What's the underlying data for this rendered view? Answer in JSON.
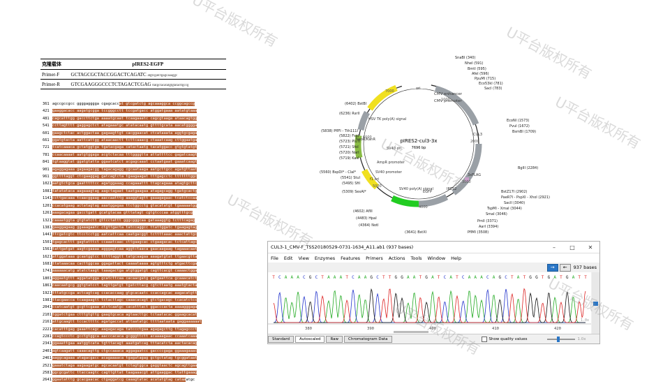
{
  "primer_table": {
    "header_col1": "克隆载体",
    "header_col2": "pIRES2-EGFP",
    "rows": [
      {
        "name": "Primer-F",
        "sequence": "GCTAGCGCTACCGGACTCAGATC",
        "extra": "atgtcgatctgagcaaaggc"
      },
      {
        "name": "Primer-R",
        "sequence": "GTCGAAGGGCCCTCTAGACTCGAG",
        "extra": "ttatgctacatatgtgtatacttgccg"
      }
    ]
  },
  "sequence": {
    "rows": [
      {
        "num": "361",
        "plain": "agccgccgcc ggggagggga cgagcacc",
        "hl": "at gtcgatctg agcaaaggca ccggcagccg"
      },
      {
        "num": "421",
        "plain": "",
        "hl": "gaaggacacc aagatgcgga tccgggcctt tccgatgacc atggatgaaa aatatgtaaa"
      },
      {
        "num": "481",
        "plain": "",
        "hl": "cagcatttgg gaccttctga aaaatgcaat tcaagaaatc cagcgtaaga ataacagtgg"
      },
      {
        "num": "541",
        "plain": "",
        "hl": "ccttagtttt gaggagctct atagaaatgc atatacaatg gttttgcata aacatgggga"
      },
      {
        "num": "601",
        "plain": "",
        "hl": "gaagctctac actggactaa gagaagttgt cacggaacat ctcataaata aggtgcgaga"
      },
      {
        "num": "661",
        "plain": "",
        "hl": "ggatgtacta aattcattgg ataacaactt tcttcaaacg ctaaatcaag cttggaatga"
      },
      {
        "num": "721",
        "plain": "",
        "hl": "tcatcaaaca gctatggtga tgatacgaga catactaatg tacatggacc gtgtgtatgt"
      },
      {
        "num": "781",
        "plain": "",
        "hl": "ccaacaaaat aatgtggaga acgtctacaa tttggggtta attattttcc gagatcaagt"
      },
      {
        "num": "841",
        "plain": "",
        "hl": "tgtaaggtat ggatgtatta ggaatcatct acgagcaaat cctaatgaat gaaatcaagt"
      },
      {
        "num": "901",
        "plain": "",
        "hl": "agaggagaaa gagaagacgg tagacagagg cgcaataaga aatgcttgcc agatgttaat"
      },
      {
        "num": "961",
        "plain": "",
        "hl": "ggttttaggt ctcgaaggag gatcagtcta tgaagaagat tttgagcctc tttttttggc"
      },
      {
        "num": "1021",
        "plain": "",
        "hl": "aatgtctgca gaatttttcc agatggaaag ccagaaattt ttagcagaaa atagtgcttc"
      },
      {
        "num": "1081",
        "plain": "",
        "hl": "tatatataca aagaaagtag aagctagaat taatgaagaa atagagcagg tgatgcactg"
      },
      {
        "num": "1141",
        "plain": "",
        "hl": "ccttgacaaa tcaacggaag aaccaatttg aaaggtagtt gaaagagaac tcatctccaa"
      },
      {
        "num": "1201",
        "plain": "",
        "hl": "ccacatgaag actatagtag aaatggagaa ttctggcctg gtacatatgt tgaaaaatgg"
      },
      {
        "num": "1261",
        "plain": "",
        "hl": "aaagacagaa gacctgatt gcatgtacaa gtttatagt cgtgtcccaa atggtttgcg"
      },
      {
        "num": "1321",
        "plain": "",
        "hl": "caaaatggta gtgtatctt gttcctattt gggcgggcaa gataaaggtg tctttcagag"
      },
      {
        "num": "1381",
        "plain": "",
        "hl": "gaaggagaag ggaaagaatc ctgttgacta tatccaggcc ttattggatc tgaagagtag"
      },
      {
        "num": "1441",
        "plain": "",
        "hl": "ttcgatcgtc ttcctcctgg aatcattcaa caatgacggt tcttttaaac aaactattgc"
      },
      {
        "num": "1501",
        "plain": "",
        "hl": "tgagcacttt gagtatttct ccaaatcaac cttgaagcac ctgaagacac tctcattagc"
      },
      {
        "num": "1561",
        "plain": "",
        "hl": "tattgatgat aagtcgaaaa agggagtcaa aggtctaaca gaacaagaag tagaaacaat"
      },
      {
        "num": "1621",
        "plain": "",
        "hl": "attggataaa gcaatggtcc tttttaggtt tatgcaagaa aaagatgtat ttgaacgtta"
      },
      {
        "num": "1681",
        "plain": "",
        "hl": "ttataaacaa cacttggcaa ggagattact caaaataaaa agtgtttctg atgacttcga"
      },
      {
        "num": "1741",
        "plain": "",
        "hl": "aaaaaacatg atatctaagt taaagactga atgtggatgt cagttcacgt caaaactgga"
      },
      {
        "num": "1801",
        "plain": "",
        "hl": "aggaatgttt aggatatgga gcatcttcaa cacaacgatg gatgaattca gcaaacatct"
      },
      {
        "num": "1861",
        "plain": "",
        "hl": "caacaatgcg ggtgtatcct tagttgatgt tgatcttacg cgtcttaatg aaatgtacta"
      },
      {
        "num": "1921",
        "plain": "",
        "hl": "tttatgccga actcagtcag ccacaccaag gtgcacaatc ccaccagcac aagacatgtt"
      },
      {
        "num": "1981",
        "plain": "",
        "hl": "ttacgaacca tcaagaagtt tctacttagc caaacacagt gtctgacagc tcacatctcc"
      },
      {
        "num": "2041",
        "plain": "",
        "hl": "ccatcaatgt gcgttcgaaa atctcaatgc cacatttact ggacccacta aaaagggaga"
      },
      {
        "num": "2101",
        "plain": "",
        "hl": "tggatctgaa ctttgtgttg gaagtgcaca agtaacttgc tctaatacac ggaagcacat"
      },
      {
        "num": "2161",
        "plain": "",
        "hl": "attgcaagtt tccacttttc agatgaccat attaatatgc ttttaataata gaggaaaaaat"
      },
      {
        "num": "2221",
        "plain": "",
        "hl": "cacatttgag gaaattcagc aagagacaga tatccctgaa agagagcttg ttagagccct"
      },
      {
        "num": "2281",
        "plain": "",
        "hl": "ccagtccctc gcctgtggca aacccacaca gcgggttctt acaaaagaac ccaaatcaaa"
      },
      {
        "num": "2341",
        "plain": "",
        "hl": "ggaaattgaa aatggtcata tgtttacagt aaatgatcag tttacatcta aactacacag"
      },
      {
        "num": "2401",
        "plain": "",
        "hl": "agtcaagatt caaacagttg ctgccaaaca aggagaatcc gaccccgaga ggaaagaaac"
      },
      {
        "num": "2461",
        "plain": "",
        "hl": "aaggcagaaa atagacgacc acagaaaaca tgagatagag gctgctatag tgcggataat"
      },
      {
        "num": "2521",
        "plain": "",
        "hl": "gaaatctaga aagaagatgc agcacaatgt tctagtggca gaggtaactc agcagttgaa"
      },
      {
        "num": "2581",
        "plain": "",
        "hl": "ggcgcgattc ttaccaagtc cagttgttat taagaaacgt attgaaggac ttattgaaag"
      },
      {
        "num": "2641",
        "plain": "atgc",
        "hl": "ggaatatttg gcacgaacac ctgaggatcg caaagtatac acatatgtag cataa"
      }
    ]
  },
  "plasmid": {
    "name": "pIRES2-cul3-3x",
    "size": "7696 bp",
    "features": [
      "ori",
      "CMV enhancer",
      "CMV promoter",
      "CUL3",
      "3xFLAG",
      "IRES2",
      "EGFP",
      "SV40 poly(A) signal",
      "f1 ori",
      "SV40 promoter",
      "AmpR promoter",
      "SV40 ori",
      "NeoR/KanR",
      "HSV TK poly(A) signal"
    ],
    "ticks": [
      "1000",
      "2000",
      "3000",
      "4000",
      "5000",
      "6000",
      "7000"
    ],
    "sites_right": [
      "SnaBI (340)",
      "NheI (591)",
      "BmtI (595)",
      "AfeI (596)",
      "PpuMI (715)",
      "Eco53kI (781)",
      "SacI (783)",
      "EcoNI (1573)",
      "PvuI (1672)",
      "BsmBI (1709)",
      "BglII (2284)",
      "BstZ17I (2902)",
      "PaeR7I - PspXI - XhoI (2921)",
      "SacII (3040)",
      "TspMI - XmaI (3044)",
      "SmaI (3046)",
      "PmlI (3371)",
      "AarI (3394)",
      "PflMI (3508)"
    ],
    "sites_left": [
      "(6402) BstBI",
      "(6236) RsrII",
      "(5838) PflFI - Tth111I",
      "(5822) FspI",
      "(5723) PluTI",
      "(5721) SfoI",
      "(5720) NarI",
      "(5719) KasI",
      "(5560) BspDI* - ClaI*",
      "(5541) StuI",
      "(5495) SfiI",
      "(5309) SexAI*",
      "(4602) AflII",
      "(4483) HpaI",
      "(4364) NotI",
      "(3641) BstXI"
    ]
  },
  "chromatogram": {
    "title": "CUL3-1_CMV-F_TSS20180529-0731-1634_A11.ab1  (937 bases)",
    "menu": [
      "File",
      "Edit",
      "View",
      "Enzymes",
      "Features",
      "Primers",
      "Actions",
      "Tools",
      "Window",
      "Help"
    ],
    "bases_count": "937 bases",
    "sequence": "TCAAACGCTAAATCAAGCTTGGAATGATCATCAAACAGCTATGGTGATGATT",
    "positions": [
      "380",
      "390",
      "400",
      "410",
      "420"
    ],
    "tabs": [
      "Standard",
      "Autoscaled",
      "Raw",
      "Chromatogram Data"
    ],
    "active_tab": "Autoscaled",
    "quality_label": "Show quality values",
    "zoom_label": "1.0x",
    "scale_label": "1.0x",
    "base_colors": {
      "A": "#22aa22",
      "C": "#2233cc",
      "G": "#111111",
      "T": "#dd2222"
    }
  },
  "watermark": "U平台版权所有"
}
